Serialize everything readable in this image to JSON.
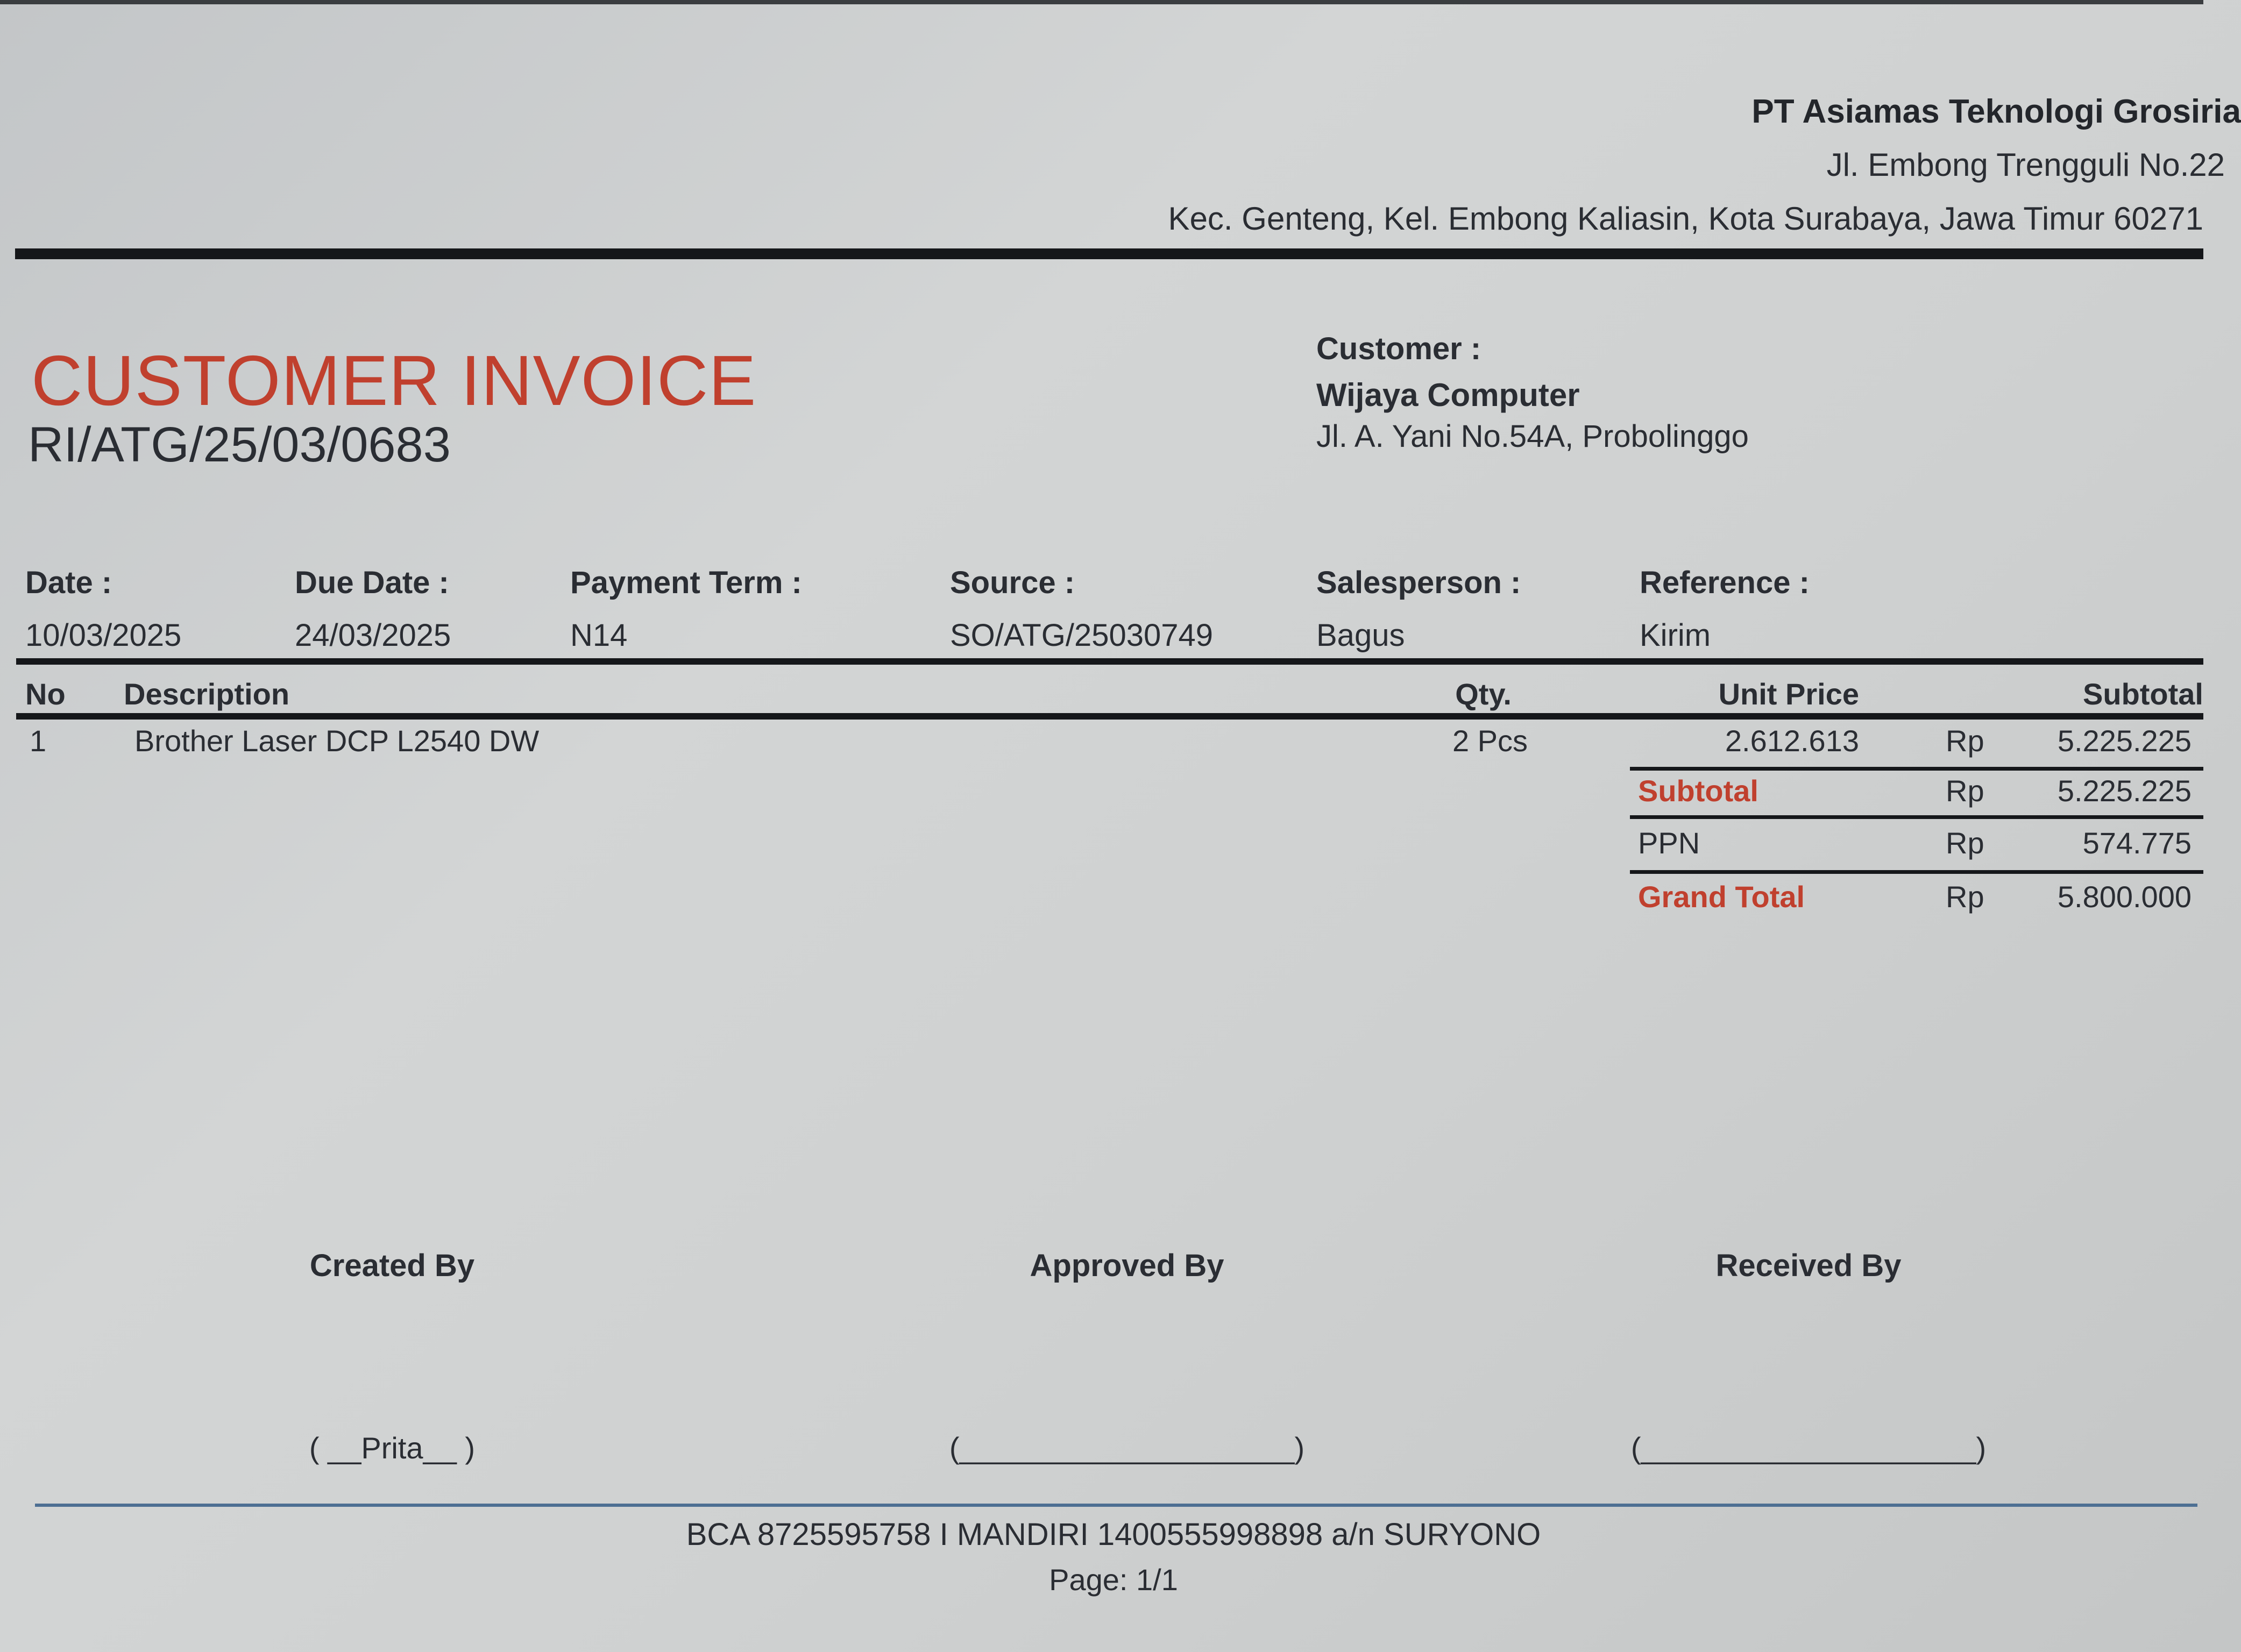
{
  "company": {
    "name": "PT Asiamas Teknologi Grosiria",
    "address_line1": "Jl. Embong Trengguli No.22",
    "address_line2": "Kec. Genteng, Kel. Embong Kaliasin, Kota Surabaya, Jawa Timur 60271"
  },
  "document": {
    "title": "CUSTOMER INVOICE",
    "number": "RI/ATG/25/03/0683",
    "title_color": "#c0402e"
  },
  "customer": {
    "label": "Customer :",
    "name": "Wijaya Computer",
    "address": "Jl. A. Yani No.54A, Probolinggo"
  },
  "info": [
    {
      "label": "Date :",
      "value": "10/03/2025"
    },
    {
      "label": "Due Date :",
      "value": "24/03/2025"
    },
    {
      "label": "Payment Term :",
      "value": "N14"
    },
    {
      "label": "Source :",
      "value": "SO/ATG/25030749"
    },
    {
      "label": "Salesperson :",
      "value": "Bagus"
    },
    {
      "label": "Reference :",
      "value": "Kirim"
    }
  ],
  "table": {
    "headers": {
      "no": "No",
      "description": "Description",
      "qty": "Qty.",
      "unit_price": "Unit Price",
      "subtotal": "Subtotal"
    },
    "rows": [
      {
        "no": "1",
        "description": "Brother Laser DCP L2540 DW",
        "qty": "2 Pcs",
        "unit_price": "2.612.613",
        "currency": "Rp",
        "subtotal": "5.225.225"
      }
    ]
  },
  "totals": [
    {
      "label": "Subtotal",
      "currency": "Rp",
      "value": "5.225.225"
    },
    {
      "label": "PPN",
      "currency": "Rp",
      "value": "574.775"
    },
    {
      "label": "Grand Total",
      "currency": "Rp",
      "value": "5.800.000"
    }
  ],
  "signatures": [
    {
      "label": "Created By",
      "name": "( __Prita__ )"
    },
    {
      "label": "Approved By",
      "name": "(____________________)"
    },
    {
      "label": "Received By",
      "name": "(____________________)"
    }
  ],
  "footer": {
    "bank": "BCA 8725595758 I MANDIRI 1400555998898 a/n SURYONO",
    "page": "Page: 1/1"
  }
}
